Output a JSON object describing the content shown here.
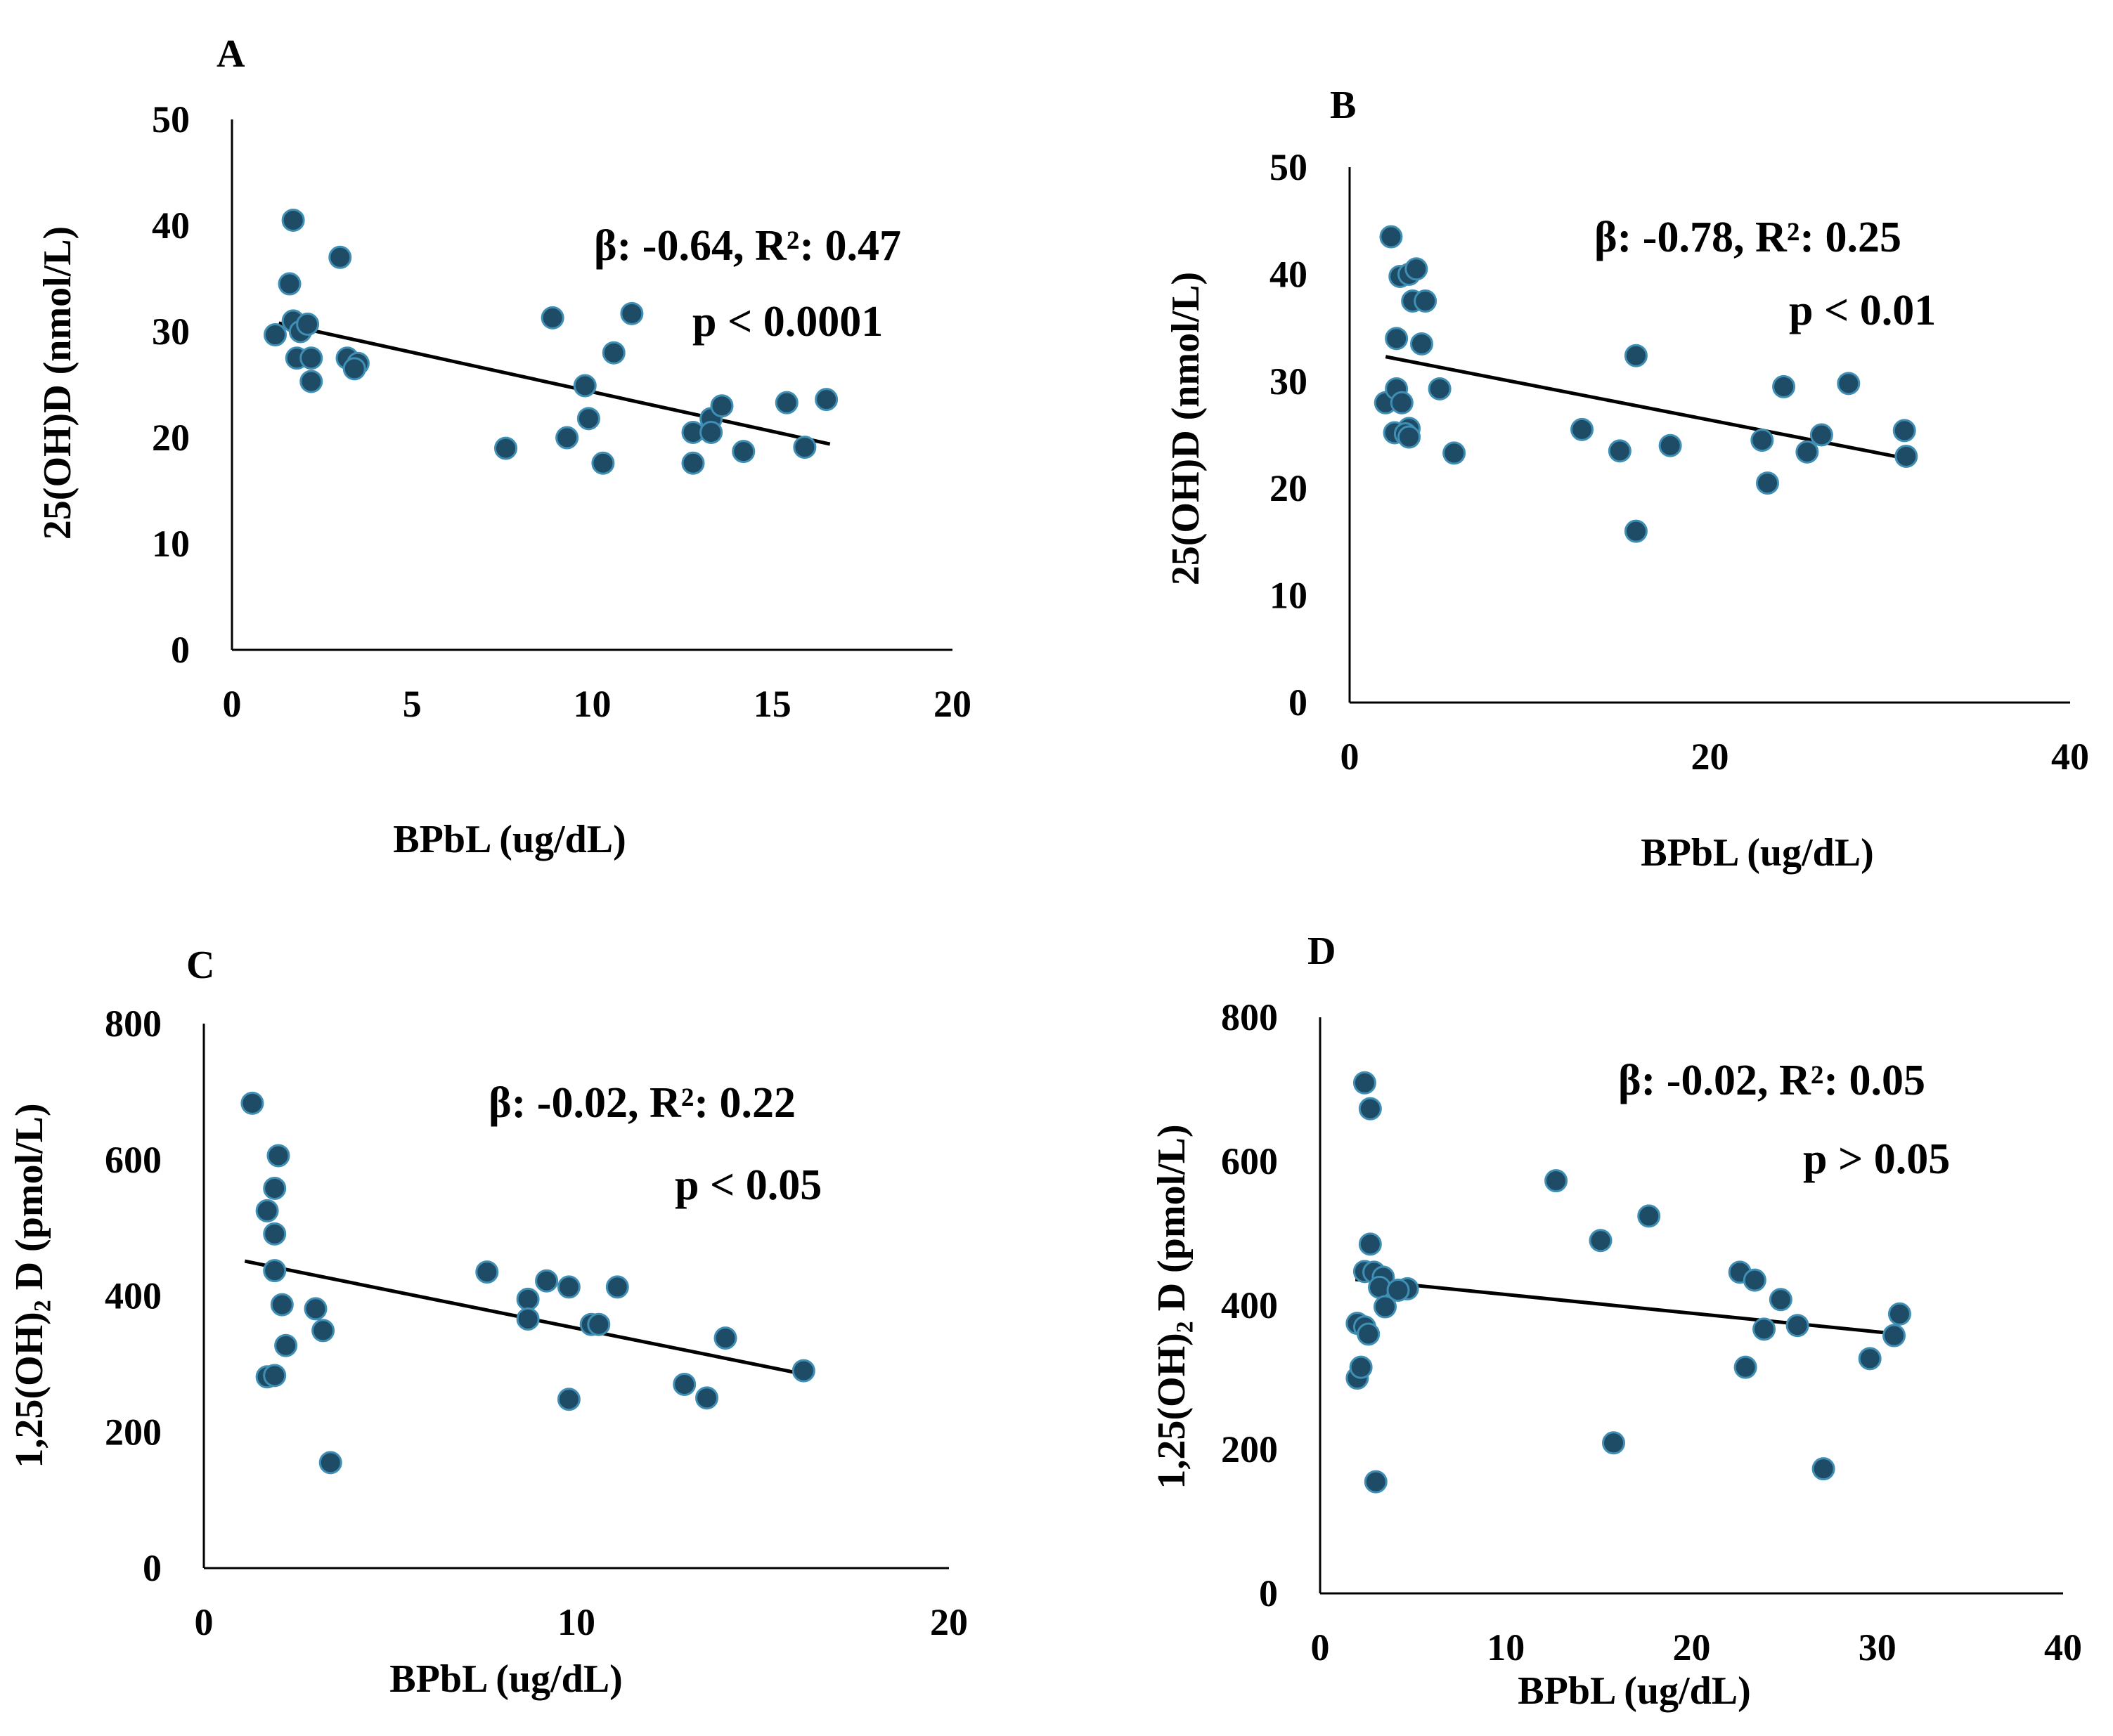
{
  "colors": {
    "point": "#1e4b66",
    "point_edge": "#3f8fb5",
    "line": "#000000",
    "axis": "#000000"
  },
  "chart_data": [
    {
      "type": "scatter",
      "panel": "A",
      "xlabel": "BPbL (ug/dL)",
      "ylabel": "25(OH)D  (nmol/L)",
      "xlim": [
        0,
        20
      ],
      "ylim": [
        0,
        50
      ],
      "xticks": [
        0,
        5,
        10,
        15,
        20
      ],
      "yticks": [
        0,
        10,
        20,
        30,
        40,
        50
      ],
      "xtick_labels": [
        "0",
        "5",
        "10",
        "15",
        "20"
      ],
      "ytick_labels": [
        "0",
        "10",
        "20",
        "30",
        "40",
        "50"
      ],
      "stat_line1": "β: -0.64, R²: 0.47",
      "stat_line2": "p < 0.0001",
      "trendline": {
        "x": [
          1.3,
          16.6
        ],
        "y": [
          30.8,
          19.4
        ]
      },
      "points": [
        [
          1.7,
          40.5
        ],
        [
          1.6,
          34.5
        ],
        [
          1.2,
          29.7
        ],
        [
          1.7,
          31.0
        ],
        [
          1.9,
          30.0
        ],
        [
          2.1,
          30.7
        ],
        [
          1.8,
          27.5
        ],
        [
          2.2,
          27.5
        ],
        [
          2.2,
          25.3
        ],
        [
          3.0,
          37.0
        ],
        [
          3.2,
          27.5
        ],
        [
          3.5,
          27.0
        ],
        [
          3.4,
          26.5
        ],
        [
          7.6,
          19.0
        ],
        [
          8.9,
          31.3
        ],
        [
          9.3,
          20.0
        ],
        [
          9.8,
          24.9
        ],
        [
          9.9,
          21.8
        ],
        [
          10.3,
          17.6
        ],
        [
          10.6,
          28.0
        ],
        [
          11.1,
          31.7
        ],
        [
          12.8,
          20.5
        ],
        [
          12.8,
          17.6
        ],
        [
          13.3,
          21.8
        ],
        [
          13.3,
          20.5
        ],
        [
          13.6,
          23.0
        ],
        [
          14.2,
          18.7
        ],
        [
          15.4,
          23.3
        ],
        [
          15.9,
          19.1
        ],
        [
          16.5,
          23.6
        ]
      ]
    },
    {
      "type": "scatter",
      "panel": "B",
      "xlabel": "BPbL (ug/dL)",
      "ylabel": "25(OH)D  (nmol/L)",
      "xlim": [
        0,
        40
      ],
      "ylim": [
        0,
        50
      ],
      "xticks": [
        0,
        20,
        40
      ],
      "yticks": [
        0,
        10,
        20,
        30,
        40,
        50
      ],
      "xtick_labels": [
        "0",
        "20",
        "40"
      ],
      "ytick_labels": [
        "0",
        "10",
        "20",
        "30",
        "40",
        "50"
      ],
      "stat_line1": "β: -0.78, R²: 0.25",
      "stat_line2": "p < 0.01",
      "trendline": {
        "x": [
          2.0,
          31.2
        ],
        "y": [
          32.3,
          22.7
        ]
      },
      "points": [
        [
          2.3,
          43.5
        ],
        [
          2.6,
          34.0
        ],
        [
          2.8,
          39.8
        ],
        [
          3.3,
          40.0
        ],
        [
          3.7,
          40.5
        ],
        [
          3.5,
          37.5
        ],
        [
          4.2,
          37.5
        ],
        [
          4.0,
          33.5
        ],
        [
          2.0,
          28.0
        ],
        [
          2.6,
          29.3
        ],
        [
          2.9,
          28.0
        ],
        [
          3.3,
          25.6
        ],
        [
          2.5,
          25.2
        ],
        [
          3.1,
          25.1
        ],
        [
          3.3,
          24.8
        ],
        [
          5.0,
          29.3
        ],
        [
          5.8,
          23.3
        ],
        [
          12.9,
          25.5
        ],
        [
          15.0,
          23.5
        ],
        [
          15.9,
          32.4
        ],
        [
          17.8,
          24.0
        ],
        [
          15.9,
          16.0
        ],
        [
          22.9,
          24.5
        ],
        [
          23.2,
          20.5
        ],
        [
          24.1,
          29.5
        ],
        [
          25.4,
          23.4
        ],
        [
          26.2,
          25.0
        ],
        [
          27.7,
          29.8
        ],
        [
          30.8,
          25.4
        ],
        [
          30.9,
          23.0
        ]
      ]
    },
    {
      "type": "scatter",
      "panel": "C",
      "xlabel": "BPbL (ug/dL)",
      "ylabel": "1,25(OH)₂ D (pmol/L)",
      "xlim": [
        0,
        20
      ],
      "ylim": [
        0,
        800
      ],
      "xticks": [
        0,
        10,
        20
      ],
      "yticks": [
        0,
        200,
        400,
        600,
        800
      ],
      "xtick_labels": [
        "0",
        "10",
        "20"
      ],
      "ytick_labels": [
        "0",
        "200",
        "400",
        "600",
        "800"
      ],
      "stat_line1": "β: -0.02, R²: 0.22",
      "stat_line2": "p < 0.05",
      "trendline": {
        "x": [
          1.1,
          16.1
        ],
        "y": [
          451,
          285
        ]
      },
      "points": [
        [
          1.3,
          683
        ],
        [
          2.0,
          606
        ],
        [
          1.9,
          558
        ],
        [
          1.7,
          525
        ],
        [
          1.9,
          491
        ],
        [
          1.9,
          437
        ],
        [
          2.1,
          387
        ],
        [
          1.7,
          281
        ],
        [
          1.9,
          283
        ],
        [
          2.2,
          327
        ],
        [
          3.0,
          381
        ],
        [
          3.2,
          349
        ],
        [
          3.4,
          155
        ],
        [
          7.6,
          435
        ],
        [
          8.7,
          395
        ],
        [
          8.7,
          366
        ],
        [
          9.2,
          422
        ],
        [
          9.8,
          413
        ],
        [
          9.8,
          248
        ],
        [
          10.4,
          358
        ],
        [
          10.6,
          358
        ],
        [
          11.1,
          413
        ],
        [
          12.9,
          270
        ],
        [
          13.5,
          250
        ],
        [
          14.0,
          338
        ],
        [
          16.1,
          290
        ]
      ]
    },
    {
      "type": "scatter",
      "panel": "D",
      "xlabel": "BPbL (ug/dL)",
      "ylabel": "1,25(OH)₂ D (pmol/L)",
      "xlim": [
        0,
        40
      ],
      "ylim": [
        0,
        800
      ],
      "xticks": [
        0,
        10,
        20,
        30,
        40
      ],
      "yticks": [
        0,
        200,
        400,
        600,
        800
      ],
      "xtick_labels": [
        "0",
        "10",
        "20",
        "30",
        "40"
      ],
      "ytick_labels": [
        "0",
        "200",
        "400",
        "600",
        "800"
      ],
      "stat_line1": "β: -0.02, R²: 0.05",
      "stat_line2": "p > 0.05",
      "trendline": {
        "x": [
          1.9,
          31.2
        ],
        "y": [
          436,
          360
        ]
      },
      "points": [
        [
          2.4,
          709
        ],
        [
          2.7,
          673
        ],
        [
          2.7,
          485
        ],
        [
          2.4,
          447
        ],
        [
          2.9,
          446
        ],
        [
          3.4,
          439
        ],
        [
          3.2,
          425
        ],
        [
          4.7,
          423
        ],
        [
          4.2,
          421
        ],
        [
          2.0,
          375
        ],
        [
          2.4,
          370
        ],
        [
          3.5,
          398
        ],
        [
          2.6,
          360
        ],
        [
          2.0,
          299
        ],
        [
          2.2,
          314
        ],
        [
          3.0,
          155
        ],
        [
          12.7,
          573
        ],
        [
          15.1,
          490
        ],
        [
          17.7,
          524
        ],
        [
          15.8,
          209
        ],
        [
          22.6,
          446
        ],
        [
          23.4,
          435
        ],
        [
          23.9,
          367
        ],
        [
          24.8,
          408
        ],
        [
          25.7,
          372
        ],
        [
          22.9,
          314
        ],
        [
          27.1,
          173
        ],
        [
          29.6,
          326
        ],
        [
          30.9,
          358
        ],
        [
          31.2,
          388
        ]
      ]
    }
  ]
}
